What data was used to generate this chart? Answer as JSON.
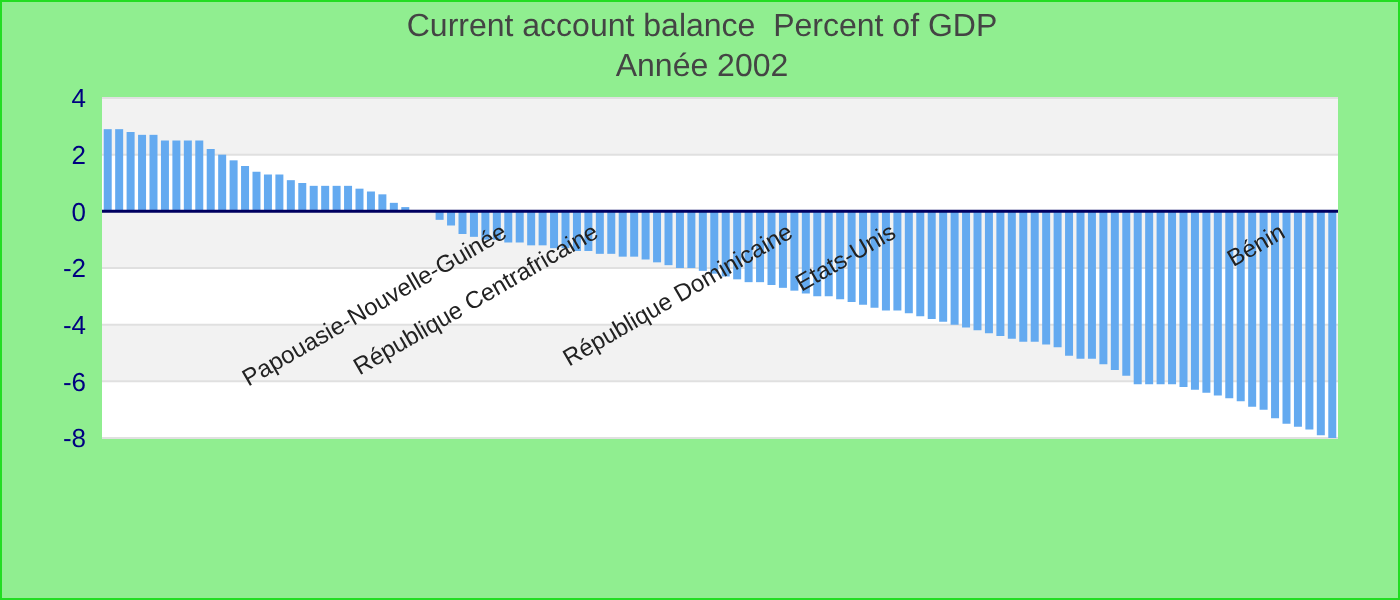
{
  "chart_data": {
    "type": "bar",
    "title": "Current account balance  Percent of GDP",
    "subtitle": "Année 2002",
    "categories": [
      null,
      null,
      null,
      null,
      null,
      null,
      null,
      null,
      null,
      null,
      null,
      null,
      null,
      null,
      null,
      null,
      null,
      null,
      null,
      null,
      null,
      null,
      null,
      null,
      null,
      null,
      null,
      null,
      null,
      null,
      null,
      null,
      null,
      null,
      null,
      "Papouasie-Nouvelle-Guinée",
      null,
      null,
      null,
      null,
      null,
      null,
      null,
      "République Centrafricaine",
      null,
      null,
      null,
      null,
      null,
      null,
      null,
      null,
      null,
      null,
      null,
      null,
      null,
      null,
      null,
      null,
      "République Dominicaine",
      null,
      null,
      null,
      null,
      null,
      null,
      null,
      null,
      "Etats-Unis",
      null,
      null,
      null,
      null,
      null,
      null,
      null,
      null,
      null,
      null,
      null,
      null,
      null,
      null,
      null,
      null,
      null,
      null,
      null,
      null,
      null,
      null,
      null,
      null,
      null,
      null,
      null,
      null,
      null,
      null,
      null,
      null,
      null,
      "Bénin",
      null,
      null,
      null,
      null
    ],
    "values": [
      2.9,
      2.9,
      2.8,
      2.7,
      2.7,
      2.5,
      2.5,
      2.5,
      2.5,
      2.2,
      2.0,
      1.8,
      1.6,
      1.4,
      1.3,
      1.3,
      1.1,
      1.0,
      0.9,
      0.9,
      0.9,
      0.9,
      0.8,
      0.7,
      0.6,
      0.3,
      0.15,
      0,
      0,
      -0.3,
      -0.5,
      -0.8,
      -0.9,
      -1.0,
      -1.0,
      -1.1,
      -1.1,
      -1.2,
      -1.2,
      -1.3,
      -1.3,
      -1.4,
      -1.4,
      -1.5,
      -1.5,
      -1.6,
      -1.6,
      -1.7,
      -1.8,
      -1.9,
      -2.0,
      -2.0,
      -2.1,
      -2.2,
      -2.3,
      -2.4,
      -2.5,
      -2.5,
      -2.6,
      -2.7,
      -2.8,
      -2.9,
      -3.0,
      -3.0,
      -3.1,
      -3.2,
      -3.3,
      -3.4,
      -3.5,
      -3.5,
      -3.6,
      -3.7,
      -3.8,
      -3.9,
      -4.0,
      -4.1,
      -4.2,
      -4.3,
      -4.4,
      -4.5,
      -4.6,
      -4.6,
      -4.7,
      -4.8,
      -5.1,
      -5.2,
      -5.2,
      -5.4,
      -5.6,
      -5.8,
      -6.1,
      -6.1,
      -6.1,
      -6.1,
      -6.2,
      -6.3,
      -6.4,
      -6.5,
      -6.6,
      -6.7,
      -6.9,
      -7.0,
      -7.3,
      -7.5,
      -7.6,
      -7.7,
      -7.9,
      -8.0
    ],
    "color": "#64aaf0",
    "ylim": [
      -8,
      4
    ],
    "yticks": [
      -8,
      -6,
      -4,
      -2,
      0,
      2,
      4
    ],
    "grid": "y"
  }
}
